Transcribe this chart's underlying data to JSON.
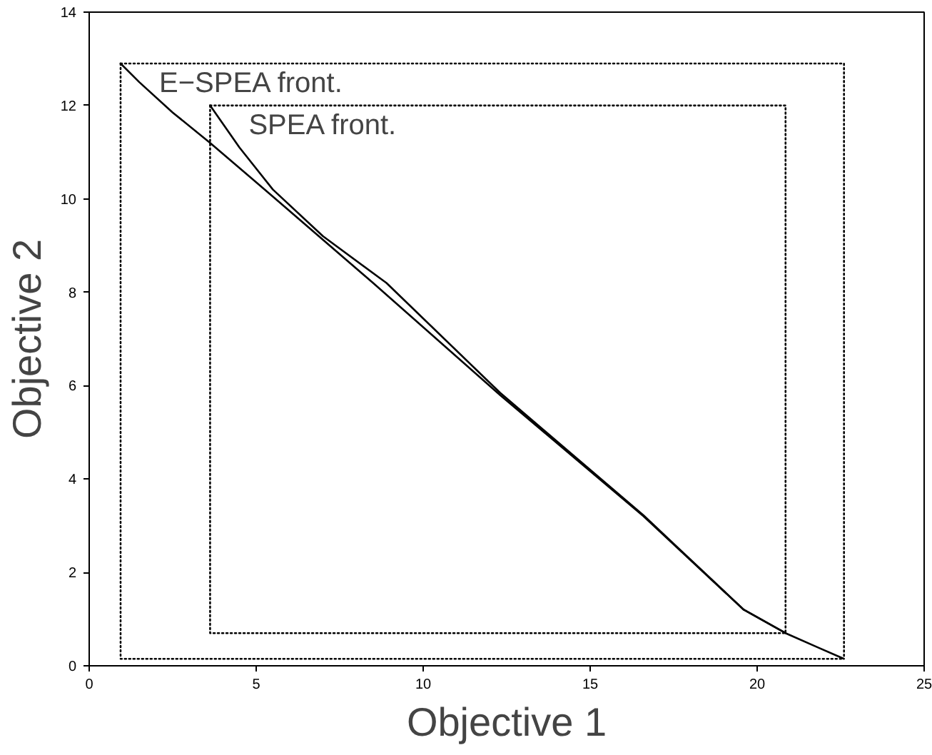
{
  "chart_data": {
    "type": "line",
    "xlabel": "Objective 1",
    "ylabel": "Objective 2",
    "xlim": [
      0,
      25
    ],
    "ylim": [
      0,
      14
    ],
    "xticks": [
      0,
      5,
      10,
      15,
      20,
      25
    ],
    "yticks": [
      0,
      2,
      4,
      6,
      8,
      10,
      12,
      14
    ],
    "grid": false,
    "marker": "none",
    "series": [
      {
        "name": "E−SPEA front.",
        "color": "#000000",
        "line_style": "solid",
        "x": [
          0.94,
          1.5,
          2.5,
          3.62,
          5.5,
          8.5,
          12.3,
          16.6,
          19.6,
          20.85,
          21.8,
          22.6
        ],
        "values": [
          12.9,
          12.5,
          11.85,
          11.2,
          10.05,
          8.2,
          5.8,
          3.2,
          1.2,
          0.7,
          0.4,
          0.15
        ]
      },
      {
        "name": "SPEA front.",
        "color": "#000000",
        "line_style": "solid",
        "x": [
          3.62,
          4.5,
          5.5,
          7.0,
          8.9,
          12.3,
          16.6,
          19.6,
          20.85
        ],
        "values": [
          12.0,
          11.1,
          10.2,
          9.2,
          8.2,
          5.85,
          3.22,
          1.2,
          0.7
        ]
      },
      {
        "color": "#000000",
        "line_style": "dotted",
        "x": [
          0.94,
          22.6,
          22.6
        ],
        "values": [
          12.9,
          12.9,
          0.15
        ]
      },
      {
        "color": "#000000",
        "line_style": "dotted",
        "x": [
          0.94,
          0.94,
          22.6
        ],
        "values": [
          12.9,
          0.15,
          0.15
        ]
      },
      {
        "color": "#000000",
        "line_style": "dotted",
        "x": [
          3.62,
          20.85,
          20.85
        ],
        "values": [
          12.0,
          12.0,
          0.7
        ]
      },
      {
        "color": "#000000",
        "line_style": "dotted",
        "x": [
          3.62,
          3.62,
          20.85
        ],
        "values": [
          12.0,
          0.7,
          0.7
        ]
      }
    ]
  }
}
